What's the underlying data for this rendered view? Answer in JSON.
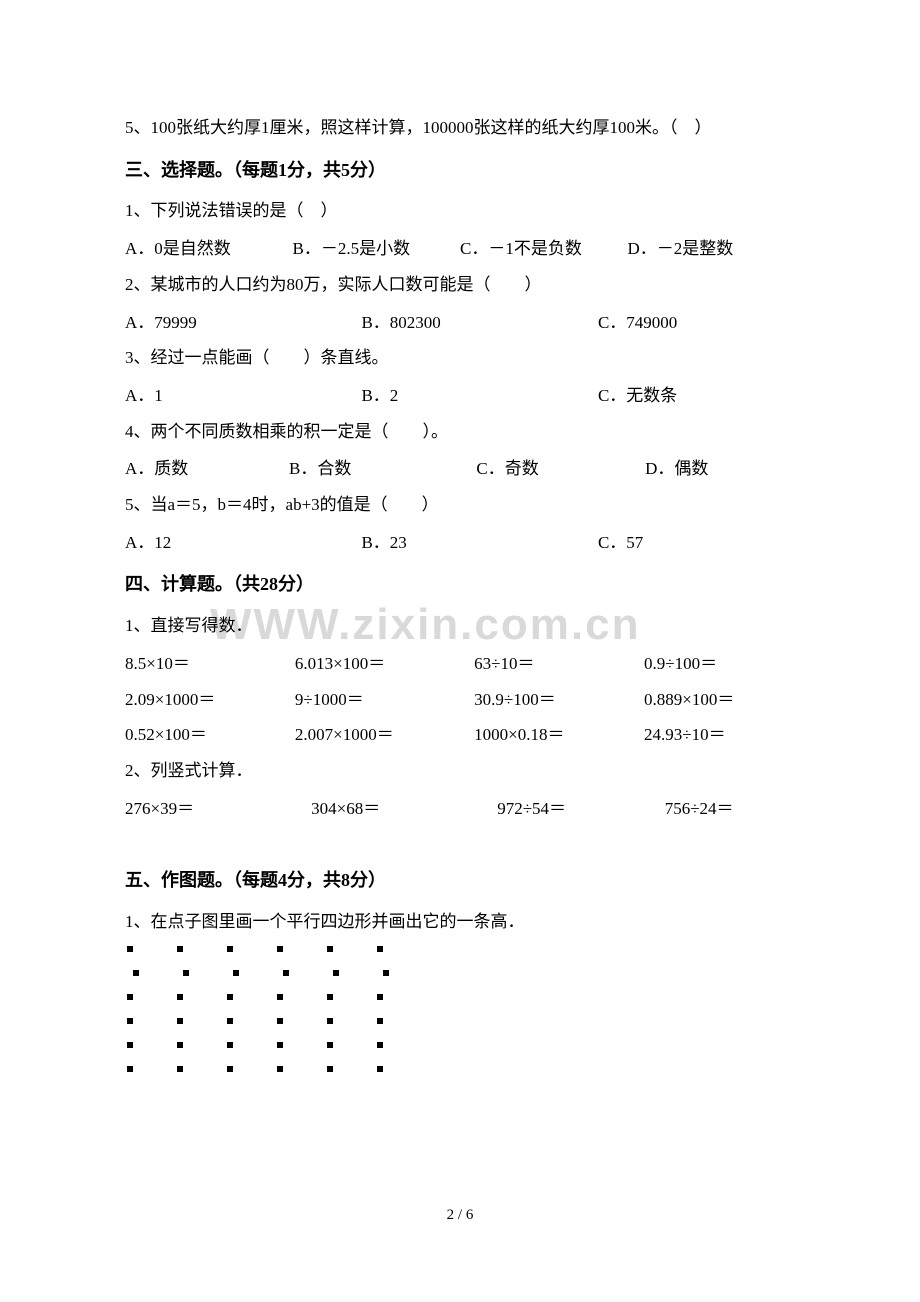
{
  "q2_5": "5、100张纸大约厚1厘米，照这样计算，100000张这样的纸大约厚100米。（　）",
  "sec3_heading": "三、选择题。（每题1分，共5分）",
  "q3_1": "1、下列说法错误的是（　）",
  "q3_1a": "A．0是自然数",
  "q3_1b": "B．－2.5是小数",
  "q3_1c": "C．－1不是负数",
  "q3_1d": "D．－2是整数",
  "q3_2": "2、某城市的人口约为80万，实际人口数可能是（　　）",
  "q3_2a": "A．79999",
  "q3_2b": "B．802300",
  "q3_2c": "C．749000",
  "q3_3": "3、经过一点能画（　　）条直线。",
  "q3_3a": "A．1",
  "q3_3b": "B．2",
  "q3_3c": "C．无数条",
  "q3_4": "4、两个不同质数相乘的积一定是（　　）。",
  "q3_4a": "A．质数",
  "q3_4b": "B．合数",
  "q3_4c": "C．奇数",
  "q3_4d": "D．偶数",
  "q3_5": "5、当a＝5，b＝4时，ab+3的值是（　　）",
  "q3_5a": "A．12",
  "q3_5b": "B．23",
  "q3_5c": "C．57",
  "sec4_heading": "四、计算题。（共28分）",
  "q4_1": "1、直接写得数．",
  "r1c1": "8.5×10＝",
  "r1c2": "6.013×100＝",
  "r1c3": "63÷10＝",
  "r1c4": "0.9÷100＝",
  "r2c1": "2.09×1000＝",
  "r2c2": "9÷1000＝",
  "r2c3": "30.9÷100＝",
  "r2c4": "0.889×100＝",
  "r3c1": "0.52×100＝",
  "r3c2": "2.007×1000＝",
  "r3c3": "1000×0.18＝",
  "r3c4": "24.93÷10＝",
  "q4_2": "2、列竖式计算．",
  "v1": "276×39＝",
  "v2": "304×68＝",
  "v3": "972÷54＝",
  "v4": "756÷24＝",
  "sec5_heading": "五、作图题。（每题4分，共8分）",
  "q5_1": "1、在点子图里画一个平行四边形并画出它的一条高．",
  "watermark": "WWW.zixin.com.cn",
  "footer": "2 / 6",
  "dots": {
    "rows": 6,
    "cols": 6
  }
}
